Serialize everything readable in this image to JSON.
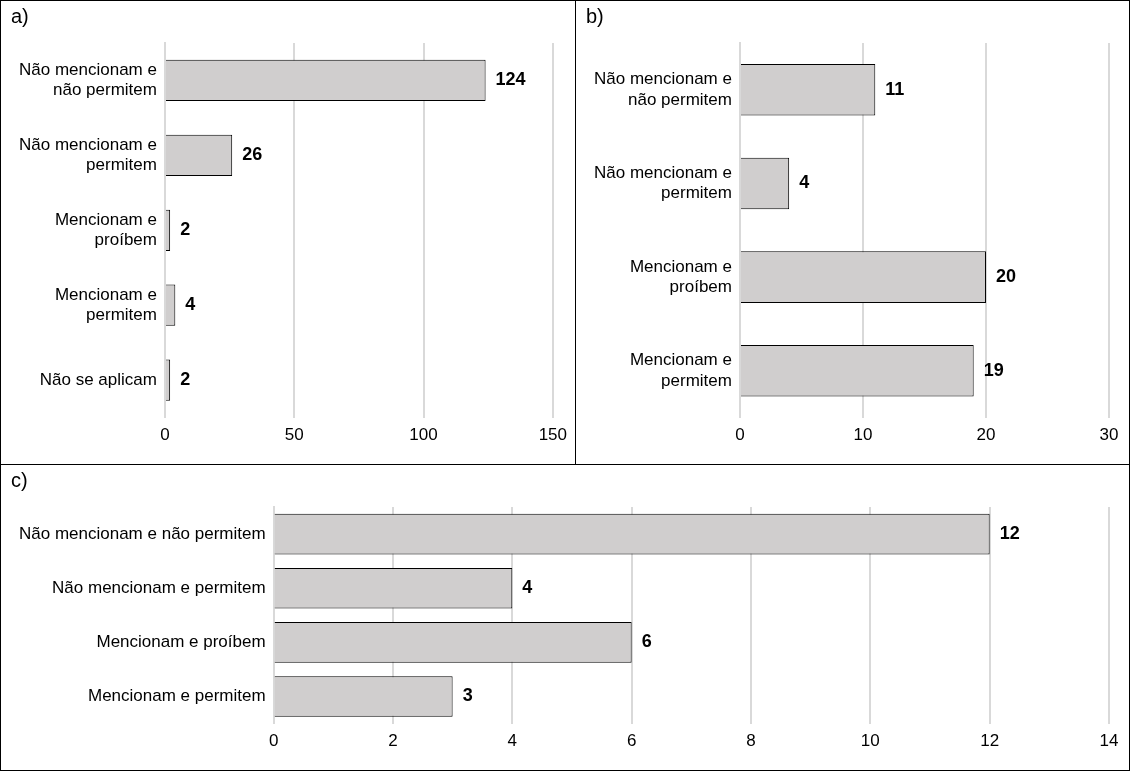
{
  "chart_data": [
    {
      "type": "bar",
      "title": "a)",
      "orientation": "horizontal",
      "categories": [
        "Não mencionam e não permitem",
        "Não mencionam e permitem",
        "Mencionam e proíbem",
        "Mencionam e permitem",
        "Não se aplicam"
      ],
      "values": [
        124,
        26,
        2,
        4,
        2
      ],
      "color": "#d0cece",
      "xlim": [
        0,
        150
      ],
      "xticks": [
        0,
        50,
        100,
        150
      ],
      "grid": "x",
      "data_labels": true,
      "legend": false
    },
    {
      "type": "bar",
      "title": "b)",
      "orientation": "horizontal",
      "categories": [
        "Não mencionam e não permitem",
        "Não mencionam e permitem",
        "Mencionam e proíbem",
        "Mencionam e permitem"
      ],
      "values": [
        11,
        4,
        20,
        19
      ],
      "color": "#d0cece",
      "xlim": [
        0,
        30
      ],
      "xticks": [
        0,
        10,
        20,
        30
      ],
      "grid": "x",
      "data_labels": true,
      "legend": false
    },
    {
      "type": "bar",
      "title": "c)",
      "orientation": "horizontal",
      "categories": [
        "Não mencionam e não permitem",
        "Não mencionam e permitem",
        "Mencionam e proíbem",
        "Mencionam e permitem"
      ],
      "values": [
        12,
        4,
        6,
        3
      ],
      "color": "#d0cece",
      "xlim": [
        0,
        14
      ],
      "xticks": [
        0,
        2,
        4,
        6,
        8,
        10,
        12,
        14
      ],
      "grid": "x",
      "data_labels": true,
      "legend": false
    }
  ]
}
